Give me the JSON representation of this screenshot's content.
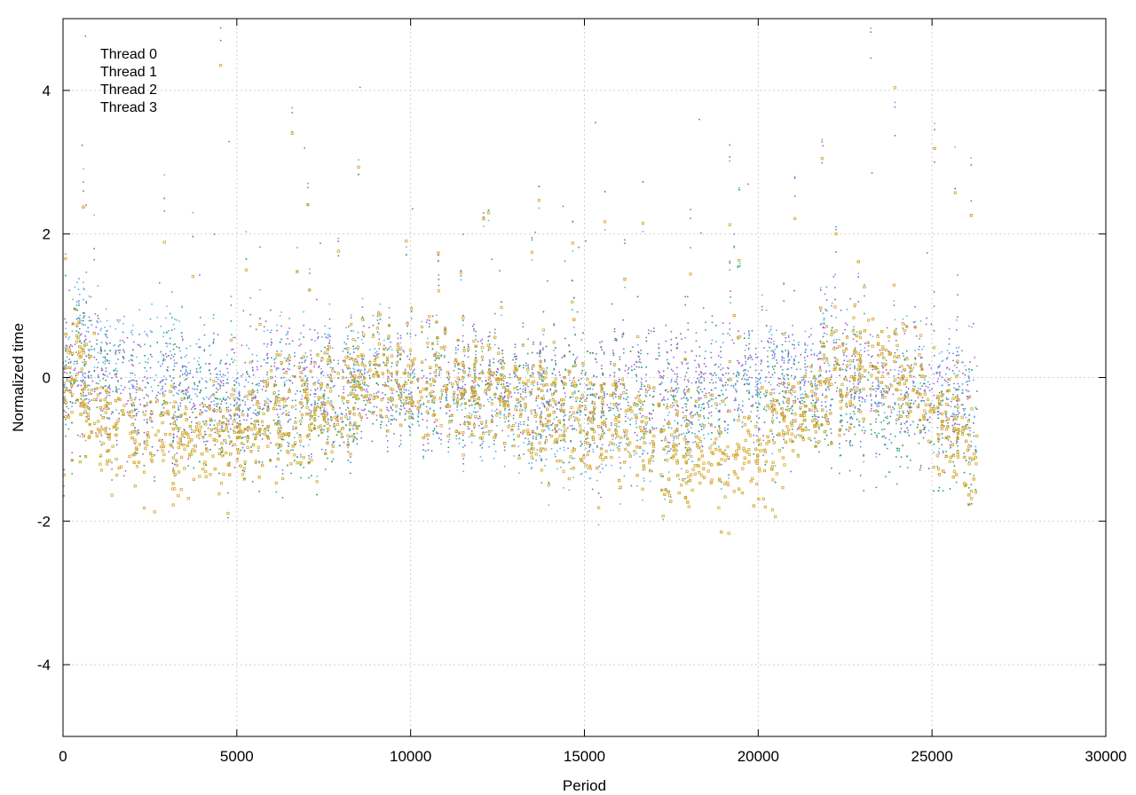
{
  "chart_data": {
    "type": "scatter",
    "title": "",
    "xlabel": "Period",
    "ylabel": "Normalized time",
    "xlim": [
      0,
      30000
    ],
    "ylim": [
      -5,
      5
    ],
    "xticks": [
      0,
      5000,
      10000,
      15000,
      20000,
      25000,
      30000
    ],
    "yticks": [
      -4,
      -2,
      0,
      2,
      4
    ],
    "grid": true,
    "legend_position": "top-left",
    "x_extent_of_data": [
      0,
      26300
    ],
    "series": [
      {
        "name": "Thread 0",
        "color": "#9b59d0",
        "marker": "dot",
        "approx_profile": [
          {
            "x": 0,
            "y_center": 0.2,
            "spread": 0.6
          },
          {
            "x": 2500,
            "y_center": -0.4,
            "spread": 0.5
          },
          {
            "x": 5000,
            "y_center": -0.3,
            "spread": 0.5
          },
          {
            "x": 10000,
            "y_center": -0.1,
            "spread": 0.5
          },
          {
            "x": 15000,
            "y_center": -0.3,
            "spread": 0.5
          },
          {
            "x": 20000,
            "y_center": 0.0,
            "spread": 0.4
          },
          {
            "x": 26000,
            "y_center": -0.3,
            "spread": 0.5
          }
        ]
      },
      {
        "name": "Thread 1",
        "color": "#2e9e6e",
        "marker": "dot",
        "approx_profile": [
          {
            "x": 0,
            "y_center": 0.0,
            "spread": 0.7
          },
          {
            "x": 5500,
            "y_center": -0.6,
            "spread": 0.6
          },
          {
            "x": 10000,
            "y_center": -0.2,
            "spread": 0.5
          },
          {
            "x": 15000,
            "y_center": -0.3,
            "spread": 0.5
          },
          {
            "x": 20000,
            "y_center": -0.2,
            "spread": 0.5
          },
          {
            "x": 26000,
            "y_center": -0.8,
            "spread": 0.6
          }
        ]
      },
      {
        "name": "Thread 2",
        "color": "#56b4e9",
        "marker": "dot",
        "approx_profile": [
          {
            "x": 0,
            "y_center": 0.3,
            "spread": 0.8
          },
          {
            "x": 5000,
            "y_center": -0.2,
            "spread": 0.6
          },
          {
            "x": 10000,
            "y_center": -0.1,
            "spread": 0.6
          },
          {
            "x": 17000,
            "y_center": -1.0,
            "spread": 0.4
          },
          {
            "x": 20000,
            "y_center": 0.0,
            "spread": 0.5
          },
          {
            "x": 26000,
            "y_center": -0.2,
            "spread": 0.6
          }
        ]
      },
      {
        "name": "Thread 3",
        "color": "#d4a72c",
        "marker": "square",
        "approx_profile": [
          {
            "x": 0,
            "y_center": 0.3,
            "spread": 0.7
          },
          {
            "x": 1000,
            "y_center": -0.7,
            "spread": 0.3
          },
          {
            "x": 3500,
            "y_center": -1.0,
            "spread": 0.3
          },
          {
            "x": 10000,
            "y_center": 0.0,
            "spread": 0.4
          },
          {
            "x": 19500,
            "y_center": -1.2,
            "spread": 0.3
          },
          {
            "x": 23500,
            "y_center": 0.3,
            "spread": 0.3
          },
          {
            "x": 26000,
            "y_center": -1.0,
            "spread": 0.3
          }
        ]
      }
    ]
  }
}
